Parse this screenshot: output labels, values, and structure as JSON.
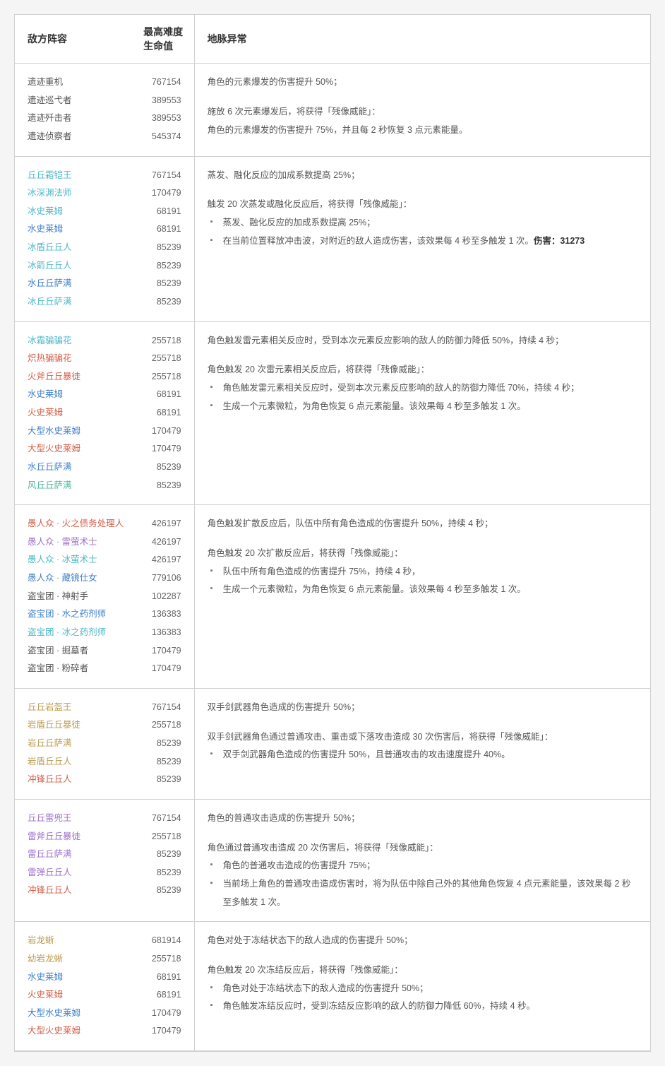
{
  "elementColors": {
    "none": "#555555",
    "cryo": "#4fb8c9",
    "hydro": "#3d7fc9",
    "pyro": "#d1604a",
    "electro": "#9c6fc9",
    "anemo": "#4fb89e",
    "geo": "#b89b4f",
    "dendro": "#7aa84f"
  },
  "headers": {
    "enemy": "敌方阵容",
    "hp": "最高难度生命值",
    "desc": "地脉异常"
  },
  "groups": [
    {
      "enemies": [
        {
          "name": "遗迹重机",
          "hp": "767154",
          "element": "none"
        },
        {
          "name": "遗迹巡弋者",
          "hp": "389553",
          "element": "none"
        },
        {
          "name": "遗迹歼击者",
          "hp": "389553",
          "element": "none"
        },
        {
          "name": "遗迹侦察者",
          "hp": "545374",
          "element": "none"
        }
      ],
      "desc": [
        {
          "type": "line",
          "text": "角色的元素爆发的伤害提升 50%；"
        },
        {
          "type": "blank"
        },
        {
          "type": "line",
          "text": "施放 6 次元素爆发后，将获得「残像威能」："
        },
        {
          "type": "line",
          "text": "角色的元素爆发的伤害提升 75%，并且每 2 秒恢复 3 点元素能量。"
        }
      ]
    },
    {
      "enemies": [
        {
          "name": "丘丘霜铠王",
          "hp": "767154",
          "element": "cryo"
        },
        {
          "name": "冰深渊法师",
          "hp": "170479",
          "element": "cryo"
        },
        {
          "name": "冰史莱姆",
          "hp": "68191",
          "element": "cryo"
        },
        {
          "name": "水史莱姆",
          "hp": "68191",
          "element": "hydro"
        },
        {
          "name": "冰盾丘丘人",
          "hp": "85239",
          "element": "cryo"
        },
        {
          "name": "冰箭丘丘人",
          "hp": "85239",
          "element": "cryo"
        },
        {
          "name": "水丘丘萨满",
          "hp": "85239",
          "element": "hydro"
        },
        {
          "name": "冰丘丘萨满",
          "hp": "85239",
          "element": "cryo"
        }
      ],
      "desc": [
        {
          "type": "line",
          "text": "蒸发、融化反应的加成系数提高 25%；"
        },
        {
          "type": "blank"
        },
        {
          "type": "line",
          "text": "触发 20 次蒸发或融化反应后，将获得「残像威能」："
        },
        {
          "type": "bullets",
          "items": [
            "蒸发、融化反应的加成系数提高 25%；",
            "在当前位置释放冲击波，对附近的敌人造成伤害，该效果每 4 秒至多触发 1 次。<span class=\"bold\">伤害：31273</span>"
          ]
        }
      ]
    },
    {
      "enemies": [
        {
          "name": "冰霜骗骗花",
          "hp": "255718",
          "element": "cryo"
        },
        {
          "name": "炽热骗骗花",
          "hp": "255718",
          "element": "pyro"
        },
        {
          "name": "火斧丘丘暴徒",
          "hp": "255718",
          "element": "pyro"
        },
        {
          "name": "水史莱姆",
          "hp": "68191",
          "element": "hydro"
        },
        {
          "name": "火史莱姆",
          "hp": "68191",
          "element": "pyro"
        },
        {
          "name": "大型水史莱姆",
          "hp": "170479",
          "element": "hydro"
        },
        {
          "name": "大型火史莱姆",
          "hp": "170479",
          "element": "pyro"
        },
        {
          "name": "水丘丘萨满",
          "hp": "85239",
          "element": "hydro"
        },
        {
          "name": "风丘丘萨满",
          "hp": "85239",
          "element": "anemo"
        }
      ],
      "desc": [
        {
          "type": "line",
          "text": "角色触发雷元素相关反应时，受到本次元素反应影响的敌人的防御力降低 50%，持续 4 秒；"
        },
        {
          "type": "blank"
        },
        {
          "type": "line",
          "text": "角色触发 20 次雷元素相关反应后，将获得「残像威能」："
        },
        {
          "type": "bullets",
          "items": [
            "角色触发雷元素相关反应时，受到本次元素反应影响的敌人的防御力降低 70%，持续 4 秒；",
            "生成一个元素微粒，为角色恢复 6 点元素能量。该效果每 4 秒至多触发 1 次。"
          ]
        }
      ]
    },
    {
      "enemies": [
        {
          "name": "愚人众 · 火之债务处理人",
          "hp": "426197",
          "element": "pyro"
        },
        {
          "name": "愚人众 · 雷萤术士",
          "hp": "426197",
          "element": "electro"
        },
        {
          "name": "愚人众 · 冰萤术士",
          "hp": "426197",
          "element": "cryo"
        },
        {
          "name": "愚人众 · 藏镜仕女",
          "hp": "779106",
          "element": "hydro"
        },
        {
          "name": "盗宝团 · 神射手",
          "hp": "102287",
          "element": "none"
        },
        {
          "name": "盗宝团 · 水之药剂师",
          "hp": "136383",
          "element": "hydro"
        },
        {
          "name": "盗宝团 · 冰之药剂师",
          "hp": "136383",
          "element": "cryo"
        },
        {
          "name": "盗宝团 · 掘墓者",
          "hp": "170479",
          "element": "none"
        },
        {
          "name": "盗宝团 · 粉碎者",
          "hp": "170479",
          "element": "none"
        }
      ],
      "desc": [
        {
          "type": "line",
          "text": "角色触发扩散反应后，队伍中所有角色造成的伤害提升 50%，持续 4 秒；"
        },
        {
          "type": "blank"
        },
        {
          "type": "line",
          "text": "角色触发 20 次扩散反应后，将获得「残像威能」："
        },
        {
          "type": "bullets",
          "items": [
            "队伍中所有角色造成的伤害提升 75%，持续 4 秒，",
            "生成一个元素微粒，为角色恢复 6 点元素能量。该效果每 4 秒至多触发 1 次。"
          ]
        }
      ]
    },
    {
      "enemies": [
        {
          "name": "丘丘岩盔王",
          "hp": "767154",
          "element": "geo"
        },
        {
          "name": "岩盾丘丘暴徒",
          "hp": "255718",
          "element": "geo"
        },
        {
          "name": "岩丘丘萨满",
          "hp": "85239",
          "element": "geo"
        },
        {
          "name": "岩盾丘丘人",
          "hp": "85239",
          "element": "geo"
        },
        {
          "name": "冲锋丘丘人",
          "hp": "85239",
          "element": "pyro"
        }
      ],
      "desc": [
        {
          "type": "line",
          "text": "双手剑武器角色造成的伤害提升 50%；"
        },
        {
          "type": "blank"
        },
        {
          "type": "line",
          "text": "双手剑武器角色通过普通攻击、重击或下落攻击造成 30 次伤害后，将获得「残像威能」："
        },
        {
          "type": "bullets",
          "items": [
            "双手剑武器角色造成的伤害提升 50%，且普通攻击的攻击速度提升 40%。"
          ]
        }
      ]
    },
    {
      "enemies": [
        {
          "name": "丘丘雷兜王",
          "hp": "767154",
          "element": "electro"
        },
        {
          "name": "雷斧丘丘暴徒",
          "hp": "255718",
          "element": "electro"
        },
        {
          "name": "雷丘丘萨满",
          "hp": "85239",
          "element": "electro"
        },
        {
          "name": "雷弹丘丘人",
          "hp": "85239",
          "element": "electro"
        },
        {
          "name": "冲锋丘丘人",
          "hp": "85239",
          "element": "pyro"
        }
      ],
      "desc": [
        {
          "type": "line",
          "text": "角色的普通攻击造成的伤害提升 50%；"
        },
        {
          "type": "blank"
        },
        {
          "type": "line",
          "text": "角色通过普通攻击造成 20 次伤害后，将获得「残像威能」："
        },
        {
          "type": "bullets",
          "items": [
            "角色的普通攻击造成的伤害提升 75%；",
            "当前场上角色的普通攻击造成伤害时，将为队伍中除自己外的其他角色恢复 4 点元素能量，该效果每 2 秒至多触发 1 次。"
          ]
        }
      ]
    },
    {
      "enemies": [
        {
          "name": "岩龙蜥",
          "hp": "681914",
          "element": "geo"
        },
        {
          "name": "幼岩龙蜥",
          "hp": "255718",
          "element": "geo"
        },
        {
          "name": "水史莱姆",
          "hp": "68191",
          "element": "hydro"
        },
        {
          "name": "火史莱姆",
          "hp": "68191",
          "element": "pyro"
        },
        {
          "name": "大型水史莱姆",
          "hp": "170479",
          "element": "hydro"
        },
        {
          "name": "大型火史莱姆",
          "hp": "170479",
          "element": "pyro"
        }
      ],
      "desc": [
        {
          "type": "line",
          "text": "角色对处于冻结状态下的敌人造成的伤害提升 50%；"
        },
        {
          "type": "blank"
        },
        {
          "type": "line",
          "text": "角色触发 20 次冻结反应后，将获得「残像威能」："
        },
        {
          "type": "bullets",
          "items": [
            "角色对处于冻结状态下的敌人造成的伤害提升 50%；",
            "角色触发冻结反应时，受到冻结反应影响的敌人的防御力降低 60%，持续 4 秒。"
          ]
        }
      ]
    }
  ]
}
